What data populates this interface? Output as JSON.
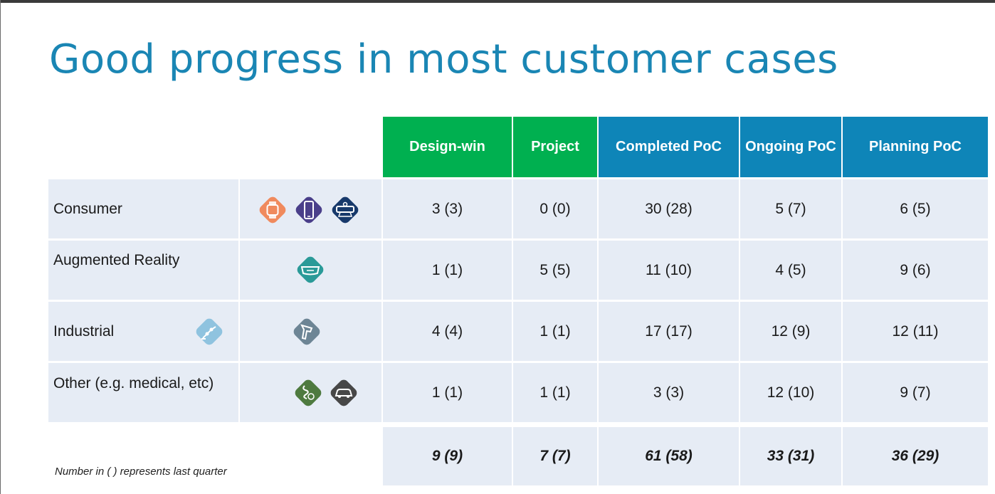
{
  "title": "Good progress in most customer cases",
  "columns": [
    {
      "label": "Design-win",
      "color": "#00b050"
    },
    {
      "label": "Project",
      "color": "#00b050"
    },
    {
      "label": "Completed PoC",
      "color": "#0e85b8"
    },
    {
      "label": "Ongoing PoC",
      "color": "#0e85b8"
    },
    {
      "label": "Planning PoC",
      "color": "#0e85b8"
    }
  ],
  "rows": [
    {
      "label": "Consumer",
      "icons": [
        "smartwatch-icon",
        "smartphone-icon",
        "vr-headset-icon"
      ],
      "values": [
        "3 (3)",
        "0 (0)",
        "30 (28)",
        "5 (7)",
        "6 (5)"
      ]
    },
    {
      "label": "Augmented Reality",
      "icons": [
        "ar-glasses-icon"
      ],
      "values": [
        "1 (1)",
        "5 (5)",
        "11 (10)",
        "4 (5)",
        "9 (6)"
      ]
    },
    {
      "label": "Industrial",
      "icons": [
        "robot-arm-icon",
        "barcode-scanner-icon"
      ],
      "values": [
        "4 (4)",
        "1 (1)",
        "17 (17)",
        "12 (9)",
        "12 (11)"
      ]
    },
    {
      "label": "Other (e.g. medical, etc)",
      "icons": [
        "intestine-icon",
        "car-icon"
      ],
      "values": [
        "1 (1)",
        "1 (1)",
        "3 (3)",
        "12 (10)",
        "9 (7)"
      ]
    }
  ],
  "totals": [
    "9 (9)",
    "7 (7)",
    "61 (58)",
    "33 (31)",
    "36 (29)"
  ],
  "footnote": "Number in ( ) represents last quarter",
  "colors": {
    "title": "#1a86b4",
    "header_green": "#00b050",
    "header_blue": "#0e85b8",
    "row_bg": "#e6ecf5",
    "icon_orange": "#f08a5d",
    "icon_purple": "#4a3f8a",
    "icon_navy": "#17396b",
    "icon_teal": "#2a9a98",
    "icon_lightblue": "#8fc3df",
    "icon_slate": "#6d8595",
    "icon_green": "#4e7a3f",
    "icon_dark": "#474747"
  }
}
